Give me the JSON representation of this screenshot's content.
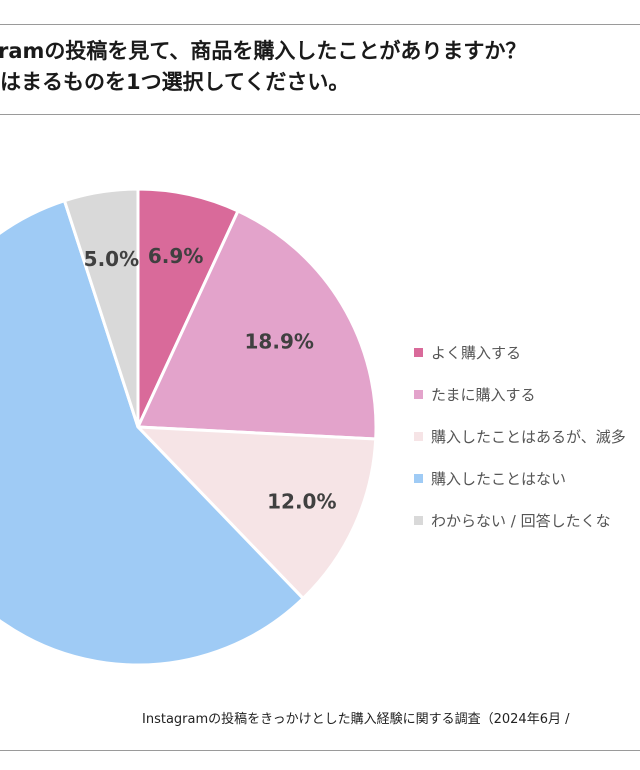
{
  "title_lines": [
    "ramの投稿を見て、商品を購入したことがありますか？",
    "はまるものを1つ選択してください。"
  ],
  "chart_data": {
    "type": "pie",
    "categories": [
      "よく購入する",
      "たまに購入する",
      "購入したことはあるが、滅多",
      "購入したことはない",
      "わからない / 回答したくな"
    ],
    "values": [
      6.9,
      18.9,
      12.0,
      57.2,
      5.0
    ],
    "value_labels": [
      "6.9%",
      "18.9%",
      "12.0%",
      "%",
      "5.0%"
    ],
    "colors": [
      "#d96a9a",
      "#e3a3cb",
      "#f6e4e6",
      "#9fcbf5",
      "#d9d9d9"
    ],
    "legend_position": "right"
  },
  "source": "Instagramの投稿をきっかけとした購入経験に関する調査（2024年6月 /"
}
